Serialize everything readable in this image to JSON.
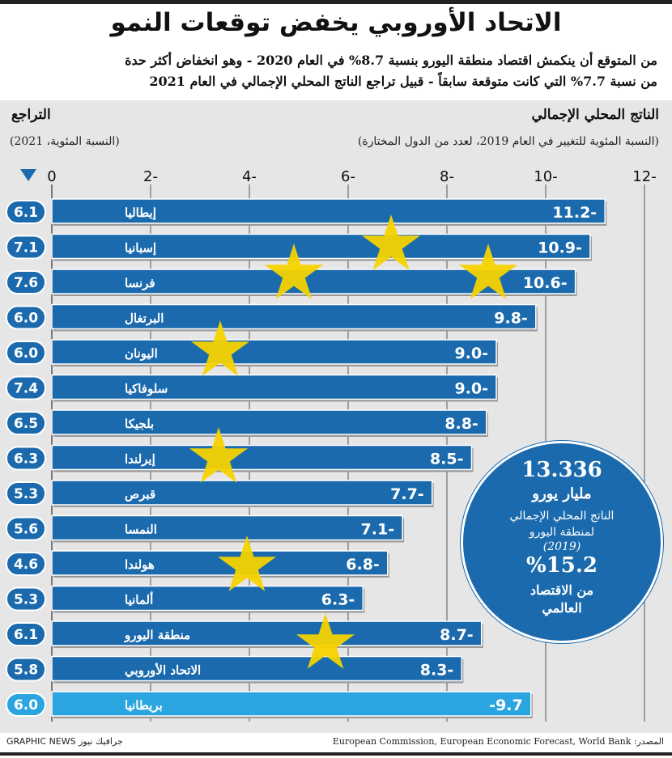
{
  "header": {
    "title": "الاتحاد الأوروبي يخفض توقعات النمو",
    "subtitle_line1": "من المتوقع أن ينكمش اقتصاد منطقة اليورو بنسبة 8.7% في العام 2020 - وهو انخفاض أكثر حدة",
    "subtitle_line2": "من نسبة 7.7% التي كانت متوقعة سابقاً - قبيل تراجع الناتج المحلي الإجمالي في العام 2021"
  },
  "panel": {
    "right_title": "الناتج المحلي الإجمالي",
    "right_subtitle": "(النسبة المئوية للتغيير في العام 2019، لعدد من الدول المختارة)",
    "left_title": "التراجع",
    "left_subtitle": "(النسبة المئوية، 2021)"
  },
  "chart_data": {
    "type": "bar",
    "orientation": "horizontal",
    "x_axis_ticks": [
      "0",
      "2-",
      "4-",
      "6-",
      "8-",
      "10-",
      "12-"
    ],
    "xlim": [
      0,
      -12
    ],
    "grid": true,
    "categories": [
      "إيطاليا",
      "إسبانيا",
      "فرنسا",
      "البرتغال",
      "اليونان",
      "سلوفاكيا",
      "بلجيكا",
      "إيرلندا",
      "قبرص",
      "النمسا",
      "هولندا",
      "ألمانيا",
      "منطقة اليورو",
      "الاتحاد الأوروبي",
      "بريطانيا"
    ],
    "values": [
      -11.2,
      -10.9,
      -10.6,
      -9.8,
      -9.0,
      -9.0,
      -8.8,
      -8.5,
      -7.7,
      -7.1,
      -6.8,
      -6.3,
      -8.7,
      -8.3,
      -9.7
    ],
    "value_labels": [
      "11.2-",
      "10.9-",
      "10.6-",
      "9.8-",
      "9.0-",
      "9.0-",
      "8.8-",
      "8.5-",
      "7.7-",
      "7.1-",
      "6.8-",
      "6.3-",
      "8.7-",
      "8.3-",
      "-9.7"
    ],
    "rebound_2021": [
      "6.1",
      "7.1",
      "7.6",
      "6.0",
      "6.0",
      "7.4",
      "6.5",
      "6.3",
      "5.3",
      "5.6",
      "4.6",
      "5.3",
      "6.1",
      "5.8",
      "6.0"
    ],
    "colors": {
      "eu_bar": "#1a6aad",
      "uk_bar": "#2aa5e0",
      "star": "#f6d300",
      "badge": "#1a6aad",
      "panel": "#e6e6e6"
    }
  },
  "bubble": {
    "value": "13.336",
    "unit": "مليار يورو",
    "desc_line1": "الناتج المحلي الإجمالي",
    "desc_line2": "لمنطقة اليورو",
    "year": "(2019)",
    "share": "%15.2",
    "share_label_line1": "من الاقتصاد",
    "share_label_line2": "العالمي"
  },
  "footer": {
    "credit": "GRAPHIC NEWS جرافيك نيوز",
    "source": "المصدر: European Commission, European Economic Forecast, World Bank"
  }
}
